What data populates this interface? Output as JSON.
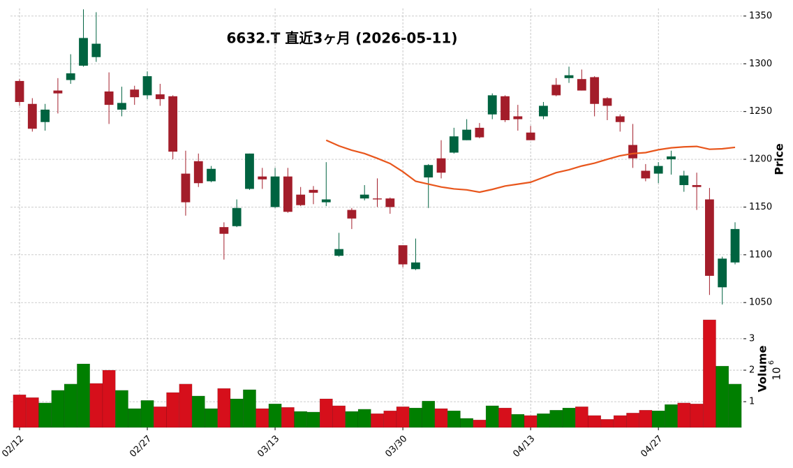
{
  "chart_data": {
    "type": "candlestick",
    "title": "6632.T  直近3ヶ月  (2026-05-11)",
    "categories": [
      "02/12",
      null,
      null,
      null,
      null,
      null,
      null,
      null,
      null,
      null,
      "02/27",
      null,
      null,
      null,
      null,
      null,
      null,
      null,
      null,
      null,
      "03/13",
      null,
      null,
      null,
      null,
      null,
      null,
      null,
      null,
      null,
      "03/30",
      null,
      null,
      null,
      null,
      null,
      null,
      null,
      null,
      null,
      "04/13",
      null,
      null,
      null,
      null,
      null,
      null,
      null,
      null,
      null,
      "04/27",
      null,
      null,
      null,
      null,
      null,
      null
    ],
    "open": [
      1282,
      1258,
      1239,
      1272,
      1283,
      1298,
      1307,
      1271,
      1252,
      1273,
      1267,
      1268,
      1266,
      1185,
      1198,
      1177,
      1129,
      1130,
      1169,
      1182,
      1150,
      1182,
      1163,
      1168,
      1155,
      1099,
      1147,
      1159,
      1159,
      1159,
      1110,
      1085,
      1181,
      1201,
      1207,
      1220,
      1233,
      1247,
      1266,
      1245,
      1228,
      1245,
      1278,
      1285,
      1284,
      1286,
      1264,
      1245,
      1215,
      1188,
      1185,
      1200,
      1173,
      1173,
      1158,
      1066,
      1092
    ],
    "high": [
      1284,
      1264,
      1258,
      1285,
      1310,
      1357,
      1354,
      1291,
      1276,
      1277,
      1292,
      1279,
      1267,
      1209,
      1206,
      1193,
      1134,
      1158,
      1206,
      1191,
      1191,
      1191,
      1171,
      1172,
      1197,
      1123,
      1149,
      1173,
      1180,
      1160,
      1110,
      1117,
      1195,
      1220,
      1233,
      1242,
      1238,
      1269,
      1267,
      1257,
      1235,
      1260,
      1285,
      1297,
      1294,
      1287,
      1265,
      1247,
      1237,
      1195,
      1197,
      1209,
      1188,
      1186,
      1170,
      1098,
      1134
    ],
    "low": [
      1256,
      1229,
      1230,
      1248,
      1279,
      1297,
      1302,
      1237,
      1245,
      1257,
      1263,
      1256,
      1200,
      1141,
      1171,
      1176,
      1095,
      1129,
      1168,
      1169,
      1149,
      1144,
      1151,
      1153,
      1151,
      1098,
      1127,
      1157,
      1150,
      1143,
      1087,
      1084,
      1149,
      1180,
      1206,
      1220,
      1222,
      1242,
      1239,
      1230,
      1220,
      1242,
      1266,
      1280,
      1272,
      1245,
      1241,
      1229,
      1191,
      1177,
      1175,
      1184,
      1166,
      1147,
      1058,
      1048,
      1090
    ],
    "close": [
      1260,
      1232,
      1252,
      1269,
      1290,
      1327,
      1321,
      1257,
      1259,
      1265,
      1287,
      1263,
      1208,
      1155,
      1175,
      1190,
      1122,
      1149,
      1206,
      1179,
      1182,
      1145,
      1152,
      1165,
      1158,
      1106,
      1138,
      1163,
      1158,
      1150,
      1090,
      1092,
      1194,
      1186,
      1224,
      1231,
      1223,
      1267,
      1241,
      1242,
      1220,
      1256,
      1267,
      1288,
      1272,
      1258,
      1256,
      1239,
      1201,
      1180,
      1193,
      1203,
      1183,
      1171,
      1078,
      1096,
      1127
    ],
    "up_color": "#006340",
    "down_color": "#a31d2a",
    "ylim": [
      1045,
      1358
    ],
    "yticks": [
      1050,
      1100,
      1150,
      1200,
      1250,
      1300,
      1350
    ],
    "ylabel": "Price",
    "grid": true,
    "moving_average": {
      "color": "#e8561c",
      "values": [
        null,
        null,
        null,
        null,
        null,
        null,
        null,
        null,
        null,
        null,
        null,
        null,
        null,
        null,
        null,
        null,
        null,
        null,
        null,
        null,
        null,
        null,
        null,
        null,
        1220,
        1214,
        1209.5,
        1206,
        1201,
        1195.6,
        1187,
        1177,
        1174,
        1171,
        1169,
        1168,
        1165.6,
        1168.5,
        1172,
        1174,
        1176,
        1181,
        1186,
        1189,
        1193,
        1196,
        1200,
        1203.7,
        1206,
        1207,
        1210,
        1212,
        1213,
        1213.5,
        1210.5,
        1211,
        1212.5
      ]
    },
    "volume": {
      "values": [
        1.22,
        1.13,
        0.96,
        1.36,
        1.56,
        2.2,
        1.58,
        2.0,
        1.36,
        0.78,
        1.04,
        0.84,
        1.29,
        1.56,
        1.18,
        0.78,
        1.42,
        1.09,
        1.38,
        0.78,
        0.93,
        0.82,
        0.69,
        0.67,
        1.09,
        0.87,
        0.69,
        0.76,
        0.62,
        0.71,
        0.84,
        0.8,
        1.02,
        0.78,
        0.71,
        0.47,
        0.42,
        0.87,
        0.8,
        0.6,
        0.56,
        0.62,
        0.73,
        0.8,
        0.84,
        0.56,
        0.44,
        0.56,
        0.64,
        0.73,
        0.71,
        0.91,
        0.96,
        0.93,
        3.6,
        2.13,
        1.56
      ],
      "up_color": "#007f00",
      "down_color": "#d60f1b",
      "ylim": [
        0.18,
        3.93
      ],
      "yticks": [
        1,
        2,
        3
      ],
      "ylabel": "Volume",
      "exponent_base": "10",
      "exponent": "6"
    }
  }
}
